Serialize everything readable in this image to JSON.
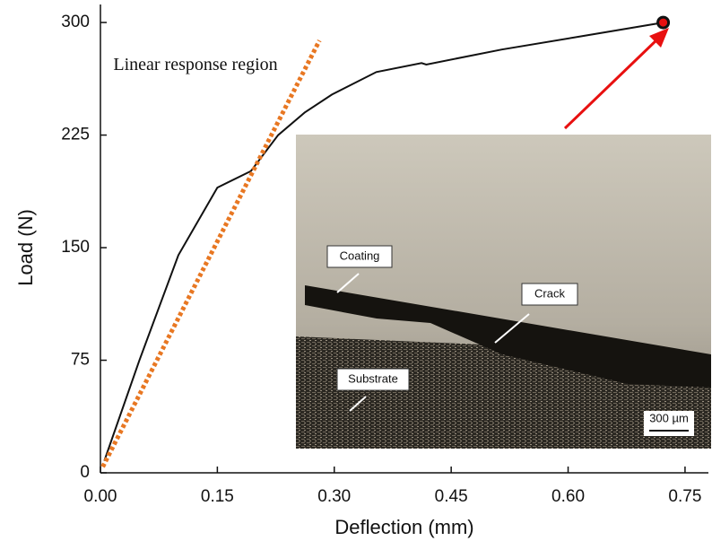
{
  "chart_data": {
    "type": "line",
    "xlabel": "Deflection (mm)",
    "ylabel": "Load (N)",
    "annotation": "Linear response region",
    "xlim": [
      0,
      0.78
    ],
    "ylim": [
      0,
      312
    ],
    "xticks": [
      {
        "value": 0,
        "label": "0.00"
      },
      {
        "value": 0.15,
        "label": "0.15"
      },
      {
        "value": 0.3,
        "label": "0.30"
      },
      {
        "value": 0.45,
        "label": "0.45"
      },
      {
        "value": 0.6,
        "label": "0.60"
      },
      {
        "value": 0.75,
        "label": "0.75"
      }
    ],
    "yticks": [
      0,
      75,
      150,
      225,
      300
    ],
    "series": [
      {
        "color": "#111111",
        "style": "solid",
        "x": [
          0.005,
          0.05,
          0.1,
          0.15,
          0.193,
          0.228,
          0.262,
          0.297,
          0.354,
          0.412,
          0.418,
          0.515,
          0.619,
          0.722
        ],
        "values": [
          8,
          75,
          145,
          190,
          201,
          225,
          240,
          252,
          267,
          273,
          272,
          282,
          291,
          300
        ]
      },
      {
        "color": "#e87722",
        "style": "dotted",
        "x": [
          0.003,
          0.281
        ],
        "values": [
          4,
          288
        ]
      },
      {
        "color": "#e81010",
        "style": "marker",
        "x": [
          0.722
        ],
        "values": [
          300
        ]
      }
    ],
    "inset": {
      "labels": [
        "Coating",
        "Crack",
        "Substrate"
      ],
      "scale_bar": "300 µm"
    }
  }
}
